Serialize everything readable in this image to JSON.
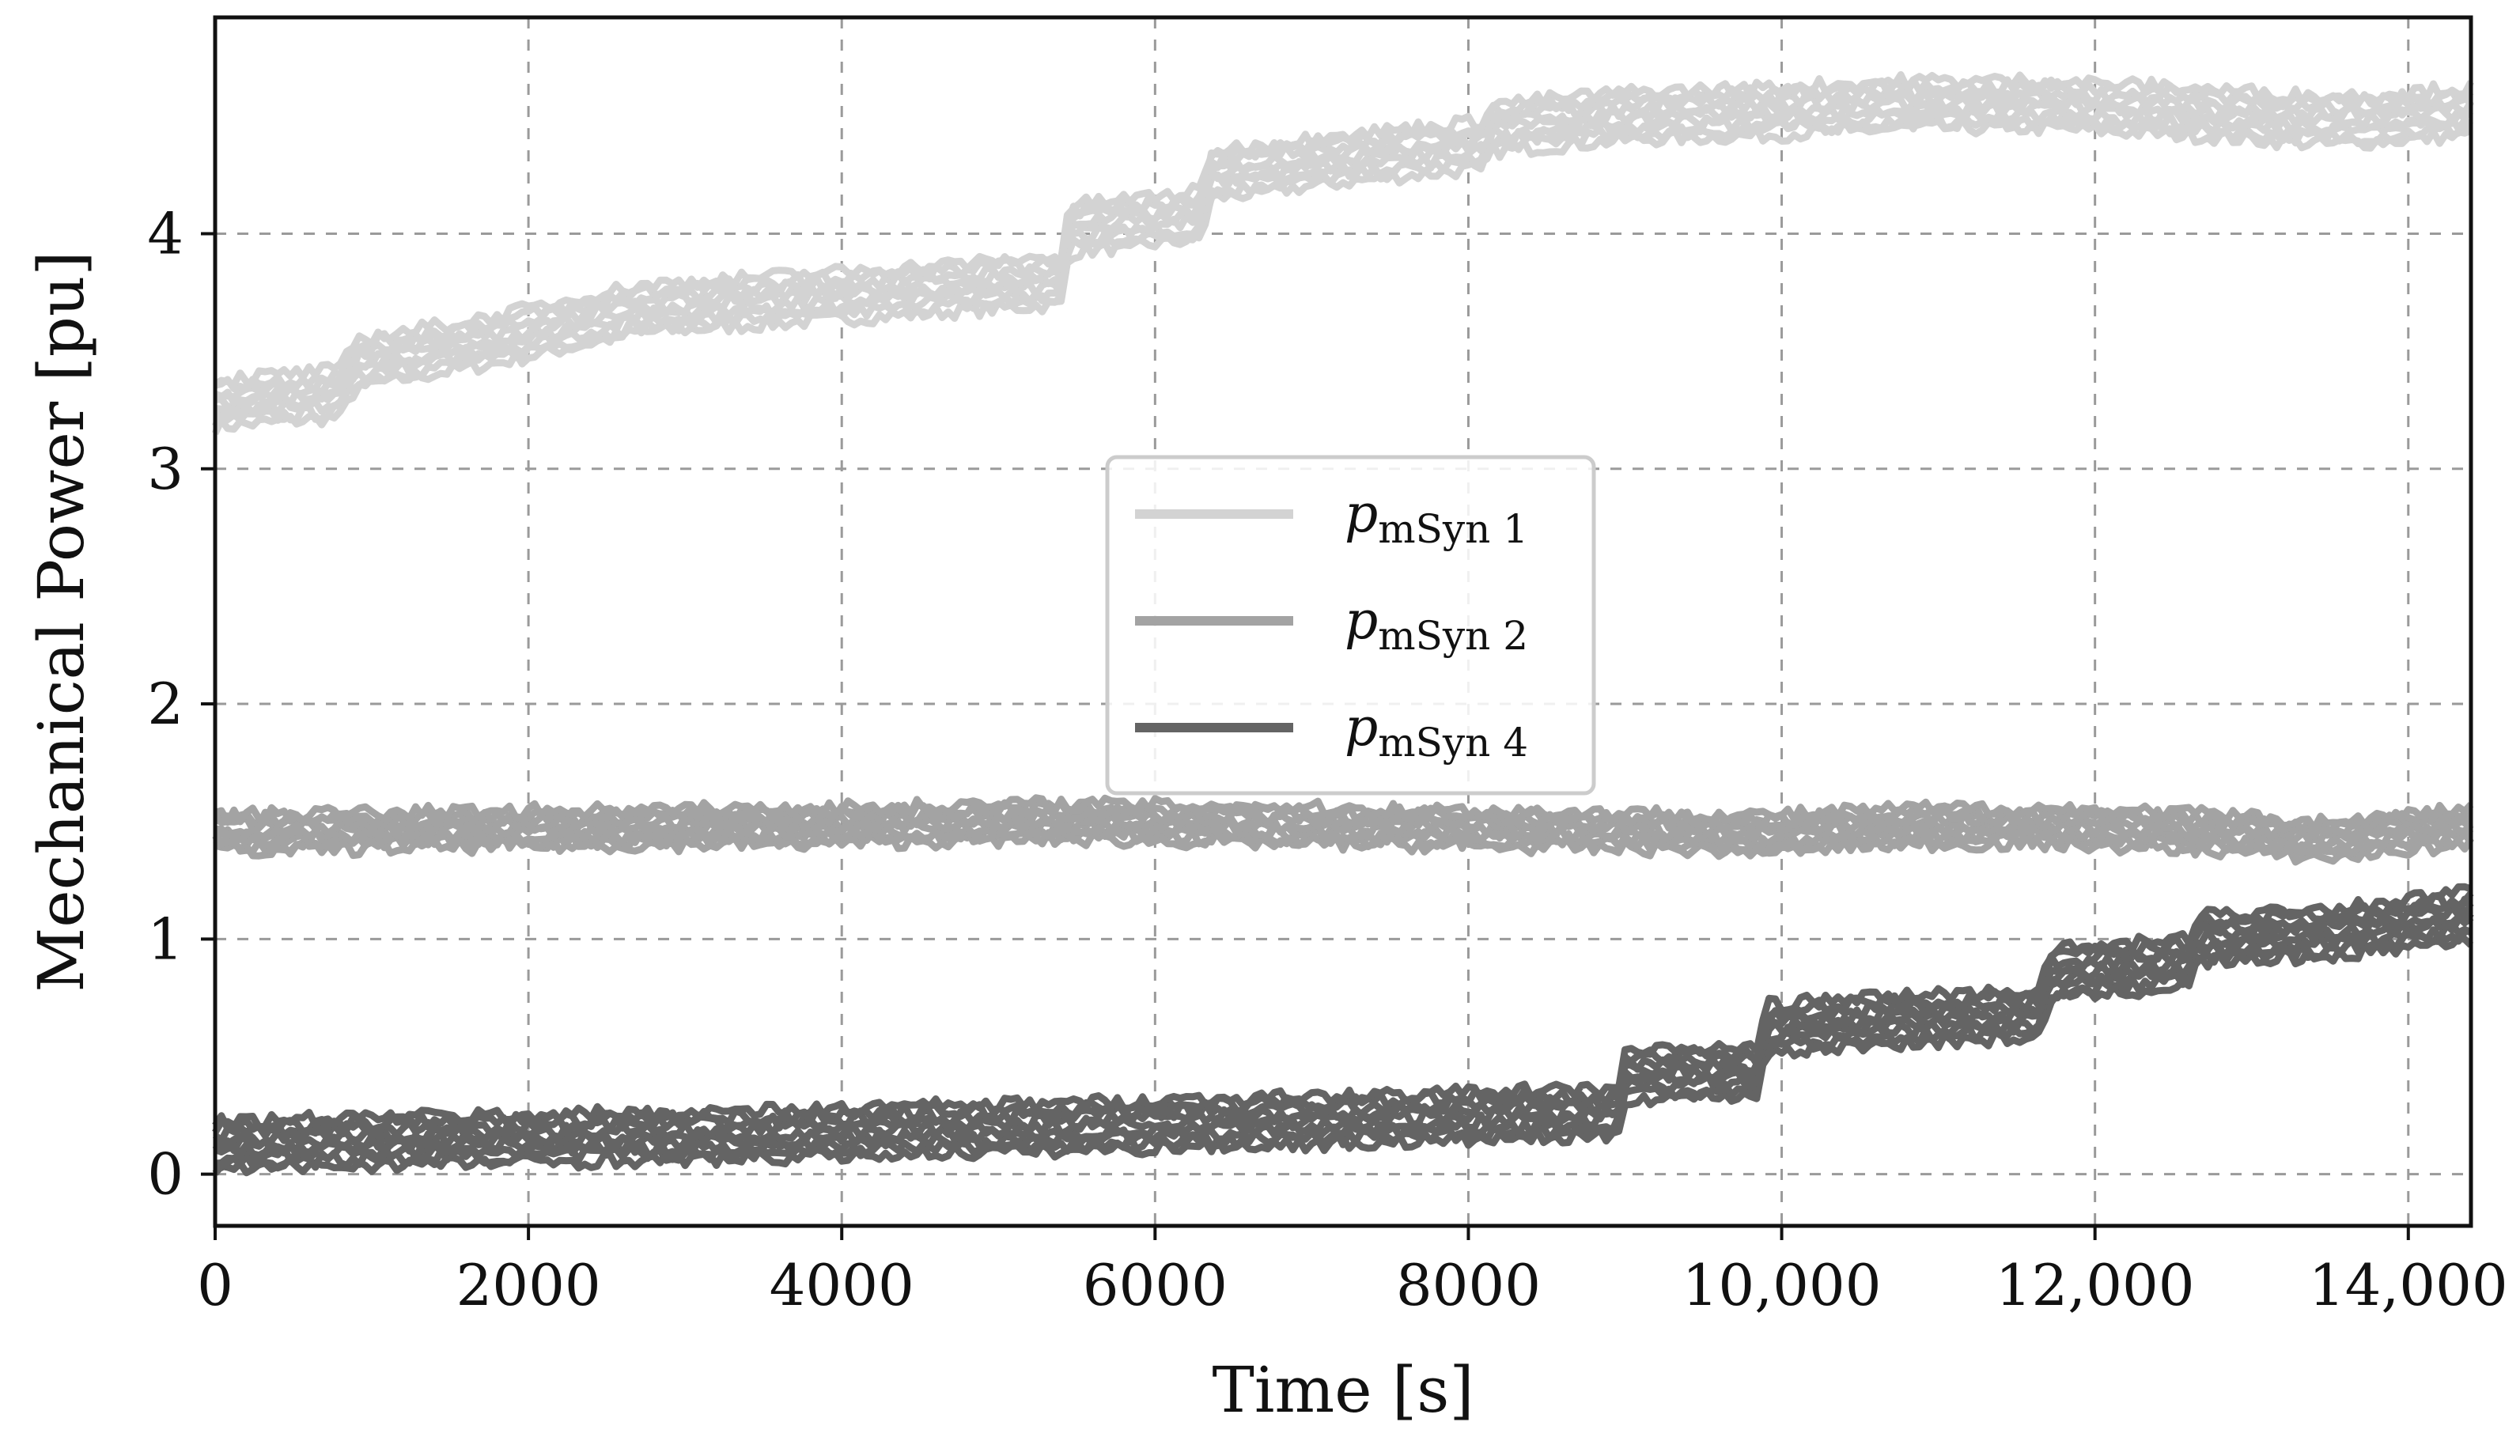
{
  "chart_data": {
    "type": "line",
    "title": "",
    "xlabel": "Time [s]",
    "ylabel": "Mechanical Power [pu]",
    "xlim": [
      0,
      14400
    ],
    "ylim": [
      -0.22,
      4.92
    ],
    "xticks": [
      0,
      2000,
      4000,
      6000,
      8000,
      10000,
      12000,
      14000
    ],
    "xtick_labels": [
      "0",
      "2000",
      "4000",
      "6000",
      "8000",
      "10,000",
      "12,000",
      "14,000"
    ],
    "yticks": [
      0,
      1,
      2,
      3,
      4
    ],
    "ytick_labels": [
      "0",
      "1",
      "2",
      "3",
      "4"
    ],
    "grid": true,
    "legend_position": "center",
    "series": [
      {
        "name": "p",
        "name_sub": "mSyn 1",
        "color": "#d3d3d3",
        "x": [
          0,
          800,
          900,
          1800,
          2700,
          3600,
          4500,
          5400,
          5450,
          6300,
          6350,
          7200,
          8100,
          8150,
          9000,
          9900,
          10800,
          11700,
          12600,
          13500,
          14400
        ],
        "y": [
          3.28,
          3.32,
          3.45,
          3.55,
          3.68,
          3.72,
          3.76,
          3.8,
          4.02,
          4.08,
          4.25,
          4.32,
          4.38,
          4.45,
          4.5,
          4.52,
          4.55,
          4.55,
          4.52,
          4.48,
          4.52
        ],
        "spread": 0.2
      },
      {
        "name": "p",
        "name_sub": "mSyn 2",
        "color": "#a3a3a3",
        "x": [
          0,
          1800,
          3600,
          5400,
          7200,
          9000,
          9900,
          10800,
          11700,
          12600,
          13500,
          14400
        ],
        "y": [
          1.45,
          1.47,
          1.48,
          1.5,
          1.48,
          1.46,
          1.45,
          1.48,
          1.48,
          1.46,
          1.42,
          1.48
        ],
        "spread": 0.15
      },
      {
        "name": "p",
        "name_sub": "mSyn 4",
        "color": "#646464",
        "x": [
          0,
          900,
          1800,
          2700,
          3600,
          4500,
          5400,
          6300,
          7200,
          8100,
          8950,
          9000,
          9850,
          9900,
          10800,
          11650,
          11700,
          12600,
          12650,
          13500,
          14400
        ],
        "y": [
          0.12,
          0.14,
          0.15,
          0.16,
          0.17,
          0.19,
          0.2,
          0.22,
          0.23,
          0.25,
          0.26,
          0.42,
          0.44,
          0.62,
          0.66,
          0.68,
          0.85,
          0.9,
          1.0,
          1.03,
          1.1
        ],
        "spread": 0.2
      }
    ]
  }
}
